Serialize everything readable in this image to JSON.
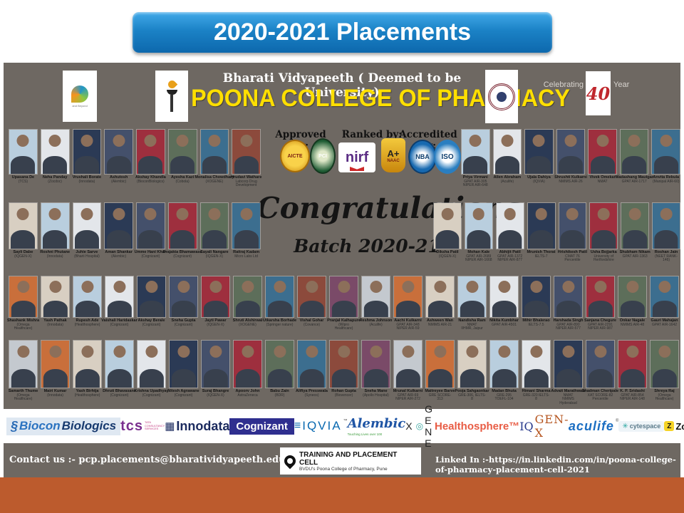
{
  "slide": {
    "title": "2020-2021 Placements"
  },
  "colors": {
    "banner_blue": "#1b82c6",
    "poster_gray": "#6e6862",
    "strip_orange": "#bc5b2d",
    "college_yellow": "#ffdf00"
  },
  "poster": {
    "university": "Bharati Vidyapeeth ( Deemed to be University)",
    "college": "POONA COLLEGE OF PHARMACY",
    "bv_logo_caption": "and Beyond",
    "celebrating": "Celebrating",
    "forty": "40",
    "year": "Year",
    "approved_by": "Approved by:",
    "ranked_by": "Ranked by:",
    "accredited_by": "Accredited by:",
    "badges": {
      "aicte": "AICTE",
      "pci": "PCI",
      "nirf": "nirf",
      "naac_grade": "A+",
      "naac": "NAAC",
      "nba": "NBA",
      "iso": "ISO"
    },
    "congrats": "Congratulations",
    "batch": "Batch 2020-21"
  },
  "rows": [
    {
      "groups": [
        [
          {
            "n": "Upasana De",
            "s": "(TCS)"
          },
          {
            "n": "Neha Panday",
            "s": "(Zocdoc)"
          },
          {
            "n": "Vrushali Borate",
            "s": "(Innodata)"
          },
          {
            "n": "Ashutosh",
            "s": "(Alembic)"
          },
          {
            "n": "Akshay Khandla",
            "s": "(BioconBiologics)"
          },
          {
            "n": "Ayesha Kazi",
            "s": "(Cobola)"
          },
          {
            "n": "Monalisa Chowdhary",
            "s": "(XOGENE)"
          },
          {
            "n": "Hrudavi Wathare",
            "s": "Labcorp Drug\nDevelopment"
          }
        ],
        [
          {
            "n": "Priya Virmani",
            "s": "GPAT AIR-305\nNIPER AIR-648"
          },
          {
            "n": "Allen Abraham",
            "s": "(Aculife)"
          },
          {
            "n": "Ujala Dahiya",
            "s": "(IQVIA)"
          },
          {
            "n": "Shrushti Kulkarni",
            "s": "NMIMS AIR-26"
          },
          {
            "n": "Vivek Omekar",
            "s": "NMAT"
          },
          {
            "n": "Wadashang Mautgar",
            "s": "GPAT AIR-1717"
          },
          {
            "n": "Anvita Rebula",
            "s": "(Manipal AIR-60)"
          }
        ]
      ]
    },
    {
      "groups": [
        [
          {
            "n": "Sayli Dabe",
            "s": "(IQGEN-X)"
          },
          {
            "n": "Roshni Phutane",
            "s": "(Innodata)"
          },
          {
            "n": "Juhie Sarve",
            "s": "(Bharti Hospital)"
          },
          {
            "n": "Aman Shankar",
            "s": "(Alembic)"
          },
          {
            "n": "Umme Hani Khan",
            "s": "(Cognizant)"
          },
          {
            "n": "Prajakta Bhamawase",
            "s": "(Cognizant)"
          },
          {
            "n": "Sayali Nangare",
            "s": "(IQGEN-X)"
          },
          {
            "n": "Raitraj Kadam",
            "s": "Micro Labs Ltd"
          }
        ],
        [
          {
            "n": "Diksha Patil",
            "s": "(IQGEN-X)"
          },
          {
            "n": "Mohan Kale",
            "s": "GPAT AIR-2689\nNIPER AIR-1668"
          },
          {
            "n": "Abhijit Patil",
            "s": "GPAT AIR-1372\nNIPER AIR-877"
          },
          {
            "n": "Mrunish Thorat",
            "s": "IELTS-7"
          },
          {
            "n": "Hrishikesh Patil",
            "s": "CMAT 76 Percentile"
          },
          {
            "n": "Usha Bojjarka",
            "s": "University of\nHertfordshire"
          },
          {
            "n": "Shubham Nikam",
            "s": "GPAT AIR-1363"
          },
          {
            "n": "Roshan Jain",
            "s": "(NEET RANK-146)"
          }
        ]
      ]
    },
    {
      "groups": [
        [
          {
            "n": "Shashank Mishra",
            "s": "(Omega Healthcare)"
          },
          {
            "n": "Yash Pathak",
            "s": "(Innodata)"
          },
          {
            "n": "Rupesh Ade",
            "s": "(Healthosphere)"
          },
          {
            "n": "Vaishali Haridaskar",
            "s": "(Cognizant)"
          },
          {
            "n": "Akshay Berale",
            "s": "(Cognizant)"
          },
          {
            "n": "Sneha Gupta",
            "s": "(Cognizant)"
          },
          {
            "n": "Jayti Pawar",
            "s": "(IQGEN-X)"
          },
          {
            "n": "Shruti Alshirwal",
            "s": "(XOGENE)"
          },
          {
            "n": "Utkarsha Borhade",
            "s": "(Springer nature)"
          },
          {
            "n": "Vishal Gohar",
            "s": "(Covance)"
          },
          {
            "n": "Pranjal Kalhapure",
            "s": "(Wipro Healthcare)"
          },
          {
            "n": "Reshma Johnson",
            "s": "(Aculife)"
          },
          {
            "n": "Aachi Kulkarni",
            "s": "GPAT AIR-348\nNIPER AIR-59"
          },
          {
            "n": "Ashween Wan",
            "s": "NMIMS AIR-21"
          },
          {
            "n": "Nandisha Ram",
            "s": "NMAT\nIIHMR, Jaipur"
          },
          {
            "n": "Nikita Kumbhar",
            "s": "GPAT AIR-4501"
          },
          {
            "n": "Mihir Bhalerao",
            "s": "IELTS-7.5"
          },
          {
            "n": "Harshada Singh",
            "s": "GPAT AIR-890\nNIPER AIR-577"
          },
          {
            "n": "Sanjana Chegure",
            "s": "GPAT AIR-2291\nNIPER AIR-987"
          },
          {
            "n": "Onkar Nagale",
            "s": "NMIMS AIR-48"
          },
          {
            "n": "Gauri Mahajan",
            "s": "GPAT AIR-1642"
          }
        ]
      ]
    },
    {
      "groups": [
        [
          {
            "n": "Samarth Thume",
            "s": "(Omega Healthcare)"
          },
          {
            "n": "Mairi Kumar",
            "s": "(Innodata)"
          },
          {
            "n": "Yash Birhtja",
            "s": "(Healthosphere)"
          },
          {
            "n": "Dhruti Bhavasane",
            "s": "(Cognizant)"
          },
          {
            "n": "Krishna Upadhyay",
            "s": "(Cognizant)"
          },
          {
            "n": "Nitesh Agrawane",
            "s": "(Cognizant)"
          },
          {
            "n": "Suraj Bhangre",
            "s": "(IQGEN-X)"
          },
          {
            "n": "Apoorv John",
            "s": "AstraZeneca"
          },
          {
            "n": "Babu Zain",
            "s": "(BDR)"
          },
          {
            "n": "Alifiya Presswala",
            "s": "(Syneos)"
          },
          {
            "n": "Rohan Gupta",
            "s": "(Biovencer)"
          },
          {
            "n": "Sneha Mane",
            "s": "(Apollo Hospital)"
          },
          {
            "n": "Mrunal Kulkarni",
            "s": "GPAT AIR-69\nNIPER AIR-272"
          },
          {
            "n": "Maitreyee Barve",
            "s": "GRE SCORE-313"
          },
          {
            "n": "Pooja Sahgaonkar",
            "s": "GRE-306, IELTS-8"
          },
          {
            "n": "Madan Bhuta",
            "s": "GRE-295\nTOEFL-104"
          },
          {
            "n": "Himani Sharma",
            "s": "GRE-320 IELTS-8"
          },
          {
            "n": "Advait Marathwale",
            "s": "NMAT\nNMIMS Hyderabad"
          },
          {
            "n": "Shadman Cheripale",
            "s": "XAT SCORE-82 Percentile"
          },
          {
            "n": "K. P. Sridashi",
            "s": "GPAT AIR-854\nNIPER AIR-148"
          },
          {
            "n": "Shreya Raj",
            "s": "(Omega Healthcare)"
          }
        ]
      ]
    }
  ],
  "companies": [
    {
      "id": "biocon",
      "name": "Biocon Biologics",
      "parts": [
        {
          "t": "§",
          "cls": "biocon-glyph"
        },
        {
          "t": "Biocon",
          "cls": "biocon-a"
        },
        {
          "t": "Biologics",
          "cls": "biocon-b"
        }
      ]
    },
    {
      "id": "tcs",
      "name": "TCS - Tata Consultancy Services",
      "parts": [
        {
          "t": "tcs",
          "cls": "tcs-main"
        },
        {
          "t": "TATA\nCONSULTANCY\nSERVICES",
          "cls": "tcs-sub"
        }
      ]
    },
    {
      "id": "innodata",
      "name": "Innodata",
      "parts": [
        {
          "t": "▦",
          "cls": "inno-icon"
        },
        {
          "t": "Innodata",
          "cls": "inno-main"
        }
      ]
    },
    {
      "id": "cognizant",
      "name": "Cognizant",
      "parts": [
        {
          "t": "Cognizant",
          "cls": "cog-main"
        }
      ]
    },
    {
      "id": "iqvia",
      "name": "IQVIA",
      "parts": [
        {
          "t": "≡",
          "cls": "iqvia-icon"
        },
        {
          "t": "IQVIA",
          "cls": "iqvia-main"
        },
        {
          "t": "™",
          "cls": "tm"
        }
      ]
    },
    {
      "id": "alembic",
      "name": "Alembic",
      "parts": [
        {
          "t": "Alembic",
          "cls": "alembic-main"
        },
        {
          "t": "Touching Lives over 100",
          "cls": "alembic-sub"
        }
      ],
      "wrap": "alembic-wrap"
    },
    {
      "id": "xogene",
      "name": "XOGENE",
      "parts": [
        {
          "t": "X",
          "cls": "xo-x"
        },
        {
          "t": "◎",
          "cls": "xo-o"
        },
        {
          "t": "G E N E",
          "cls": "xo-rest"
        }
      ]
    },
    {
      "id": "healthosphere",
      "name": "Healthosphere",
      "parts": [
        {
          "t": "Healthosphere™",
          "cls": "health-main"
        }
      ]
    },
    {
      "id": "iqgenx",
      "name": "IQGEN-X",
      "parts": [
        {
          "t": "IQ",
          "cls": "iqg-a"
        },
        {
          "t": "GEN-X",
          "cls": "iqg-b"
        }
      ]
    },
    {
      "id": "aculife",
      "name": "Aculife",
      "parts": [
        {
          "t": "aculife",
          "cls": "acu-main"
        },
        {
          "t": "®",
          "cls": "tm"
        }
      ]
    },
    {
      "id": "cytespace",
      "name": "Cytespace",
      "parts": [
        {
          "t": "✳",
          "cls": "cyte-icon"
        },
        {
          "t": "cytespace",
          "cls": "cyte-main"
        }
      ]
    },
    {
      "id": "zocdoc",
      "name": "Zocdoc",
      "parts": [
        {
          "t": "Z",
          "cls": "zoc-icon"
        },
        {
          "t": "Zocdoc",
          "cls": "zoc-main"
        }
      ]
    }
  ],
  "footer": {
    "contact": "Contact us :- pcp.placements@bharatividyapeeth.edu",
    "tpc_title": "TRAINING AND PLACEMENT CELL",
    "tpc_sub": "BVDU's Poona College of Pharmacy, Pune",
    "linkedin": "Linked In :-https://in.linkedin.com/in/poona-college-of-pharmacy-placement-cell-2021"
  }
}
